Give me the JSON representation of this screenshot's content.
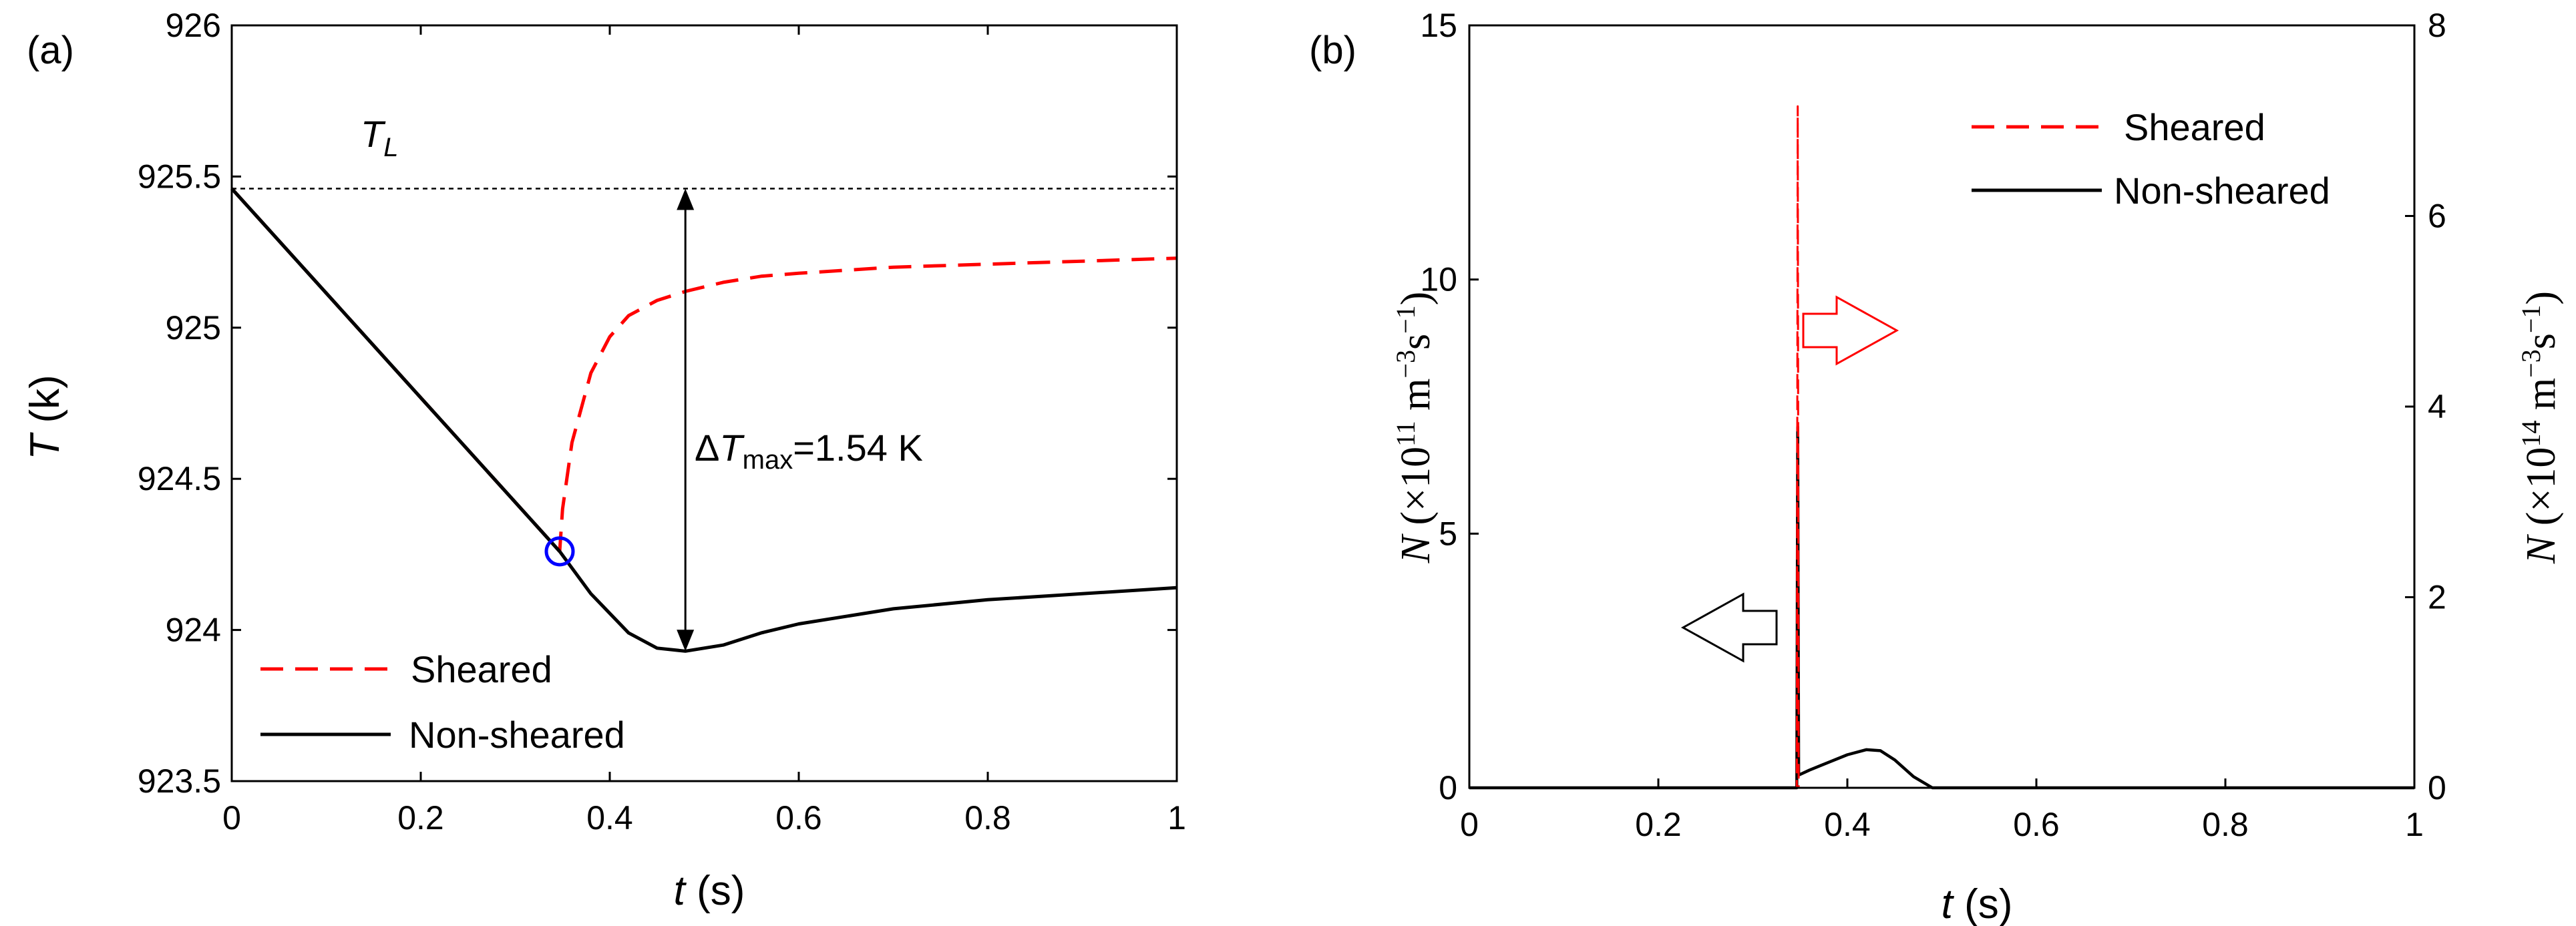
{
  "chart_data": [
    {
      "panel": "(a)",
      "type": "line",
      "xlabel": {
        "var": "t",
        "unit": "(s)"
      },
      "ylabel": {
        "var": "T",
        "unit": "(k)"
      },
      "xlim": [
        0,
        1
      ],
      "ylim": [
        923.5,
        926
      ],
      "xticks": [
        0,
        0.2,
        0.4,
        0.6,
        0.8,
        1
      ],
      "xtick_labels": [
        "0",
        "0.2",
        "0.4",
        "0.6",
        "0.8",
        "1"
      ],
      "yticks": [
        923.5,
        924,
        924.5,
        925,
        925.5,
        926
      ],
      "ytick_labels": [
        "923.5",
        "924",
        "924.5",
        "925",
        "925.5",
        "926"
      ],
      "series": [
        {
          "name": "Sheared",
          "style": "dashed",
          "color": "#ff0000",
          "x": [
            0,
            0.347,
            0.35,
            0.36,
            0.38,
            0.4,
            0.42,
            0.45,
            0.48,
            0.52,
            0.56,
            0.6,
            0.7,
            0.8,
            0.9,
            1.0
          ],
          "y": [
            925.46,
            924.26,
            924.4,
            924.62,
            924.85,
            924.97,
            925.04,
            925.09,
            925.12,
            925.15,
            925.17,
            925.18,
            925.2,
            925.21,
            925.22,
            925.23
          ]
        },
        {
          "name": "Non-sheared",
          "style": "solid",
          "color": "#000000",
          "x": [
            0,
            0.347,
            0.38,
            0.42,
            0.45,
            0.48,
            0.52,
            0.56,
            0.6,
            0.7,
            0.8,
            0.9,
            1.0
          ],
          "y": [
            925.46,
            924.26,
            924.12,
            923.99,
            923.94,
            923.93,
            923.95,
            923.99,
            924.02,
            924.07,
            924.1,
            924.12,
            924.14
          ]
        }
      ],
      "reference_line": {
        "label_main": "T",
        "label_sub": "L",
        "y": 925.46,
        "style": "dotted"
      },
      "nucleation_marker": {
        "x": 0.347,
        "y": 924.26,
        "color": "#0000ff"
      },
      "delta_annotation": {
        "text_delta": "Δ",
        "text_var": "T",
        "text_sub": "max",
        "text_value": "=1.54 K",
        "x": 0.48,
        "y_top": 925.46,
        "y_bottom": 923.93
      },
      "legend": {
        "position": "bottom-left",
        "entries": [
          "Sheared",
          "Non-sheared"
        ]
      }
    },
    {
      "panel": "(b)",
      "type": "line",
      "xlabel": {
        "var": "t",
        "unit": "(s)"
      },
      "ylabel_left": {
        "var": "N",
        "text": "(×10",
        "exp": "11",
        "unit": " m",
        "unit_exp1": "−3",
        "unit_s": "s",
        "unit_exp2": "−1",
        "close": ")"
      },
      "ylabel_right": {
        "var": "N",
        "text": "(×10",
        "exp": "14",
        "unit": " m",
        "unit_exp1": "−3",
        "unit_s": "s",
        "unit_exp2": "−1",
        "close": ")"
      },
      "xlim": [
        0,
        1
      ],
      "ylim_left": [
        0,
        15
      ],
      "ylim_right": [
        0,
        8
      ],
      "xticks": [
        0,
        0.2,
        0.4,
        0.6,
        0.8,
        1
      ],
      "xtick_labels": [
        "0",
        "0.2",
        "0.4",
        "0.6",
        "0.8",
        "1"
      ],
      "yticks_left": [
        0,
        5,
        10,
        15
      ],
      "ytick_labels_left": [
        "0",
        "5",
        "10",
        "15"
      ],
      "yticks_right": [
        0,
        2,
        4,
        6,
        8
      ],
      "ytick_labels_right": [
        "0",
        "2",
        "4",
        "6",
        "8"
      ],
      "series": [
        {
          "name": "Sheared",
          "axis": "right",
          "style": "dashed",
          "color": "#ff0000",
          "x": [
            0,
            0.3465,
            0.3475,
            0.3485,
            1.0
          ],
          "y": [
            0,
            0,
            7.15,
            0,
            0
          ]
        },
        {
          "name": "Non-sheared",
          "axis": "left",
          "style": "solid",
          "color": "#000000",
          "x": [
            0,
            0.3465,
            0.3475,
            0.3485,
            0.36,
            0.38,
            0.4,
            0.42,
            0.435,
            0.45,
            0.47,
            0.49,
            1.0
          ],
          "y": [
            0,
            0,
            7.1,
            0.25,
            0.35,
            0.5,
            0.65,
            0.75,
            0.73,
            0.55,
            0.22,
            0.0,
            0
          ]
        }
      ],
      "arrows": [
        {
          "direction": "left",
          "color": "#000000",
          "meaning": "left axis"
        },
        {
          "direction": "right",
          "color": "#ff0000",
          "meaning": "right axis"
        }
      ],
      "legend": {
        "position": "top-right",
        "entries": [
          "Sheared",
          "Non-sheared"
        ]
      }
    }
  ]
}
